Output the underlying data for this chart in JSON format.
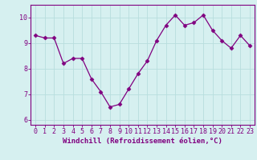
{
  "x": [
    0,
    1,
    2,
    3,
    4,
    5,
    6,
    7,
    8,
    9,
    10,
    11,
    12,
    13,
    14,
    15,
    16,
    17,
    18,
    19,
    20,
    21,
    22,
    23
  ],
  "y": [
    9.3,
    9.2,
    9.2,
    8.2,
    8.4,
    8.4,
    7.6,
    7.1,
    6.5,
    6.6,
    7.2,
    7.8,
    8.3,
    9.1,
    9.7,
    10.1,
    9.7,
    9.8,
    10.1,
    9.5,
    9.1,
    8.8,
    9.3,
    8.9
  ],
  "line_color": "#800080",
  "marker": "D",
  "marker_size": 2.5,
  "bg_color": "#d6f0f0",
  "grid_color": "#b8dede",
  "xlabel": "Windchill (Refroidissement éolien,°C)",
  "xlabel_color": "#800080",
  "tick_color": "#800080",
  "ylim": [
    5.8,
    10.5
  ],
  "xlim": [
    -0.5,
    23.5
  ],
  "yticks": [
    6,
    7,
    8,
    9,
    10
  ],
  "xticks": [
    0,
    1,
    2,
    3,
    4,
    5,
    6,
    7,
    8,
    9,
    10,
    11,
    12,
    13,
    14,
    15,
    16,
    17,
    18,
    19,
    20,
    21,
    22,
    23
  ],
  "spine_color": "#800080",
  "xlabel_fontsize": 6.5,
  "tick_fontsize": 6.0
}
